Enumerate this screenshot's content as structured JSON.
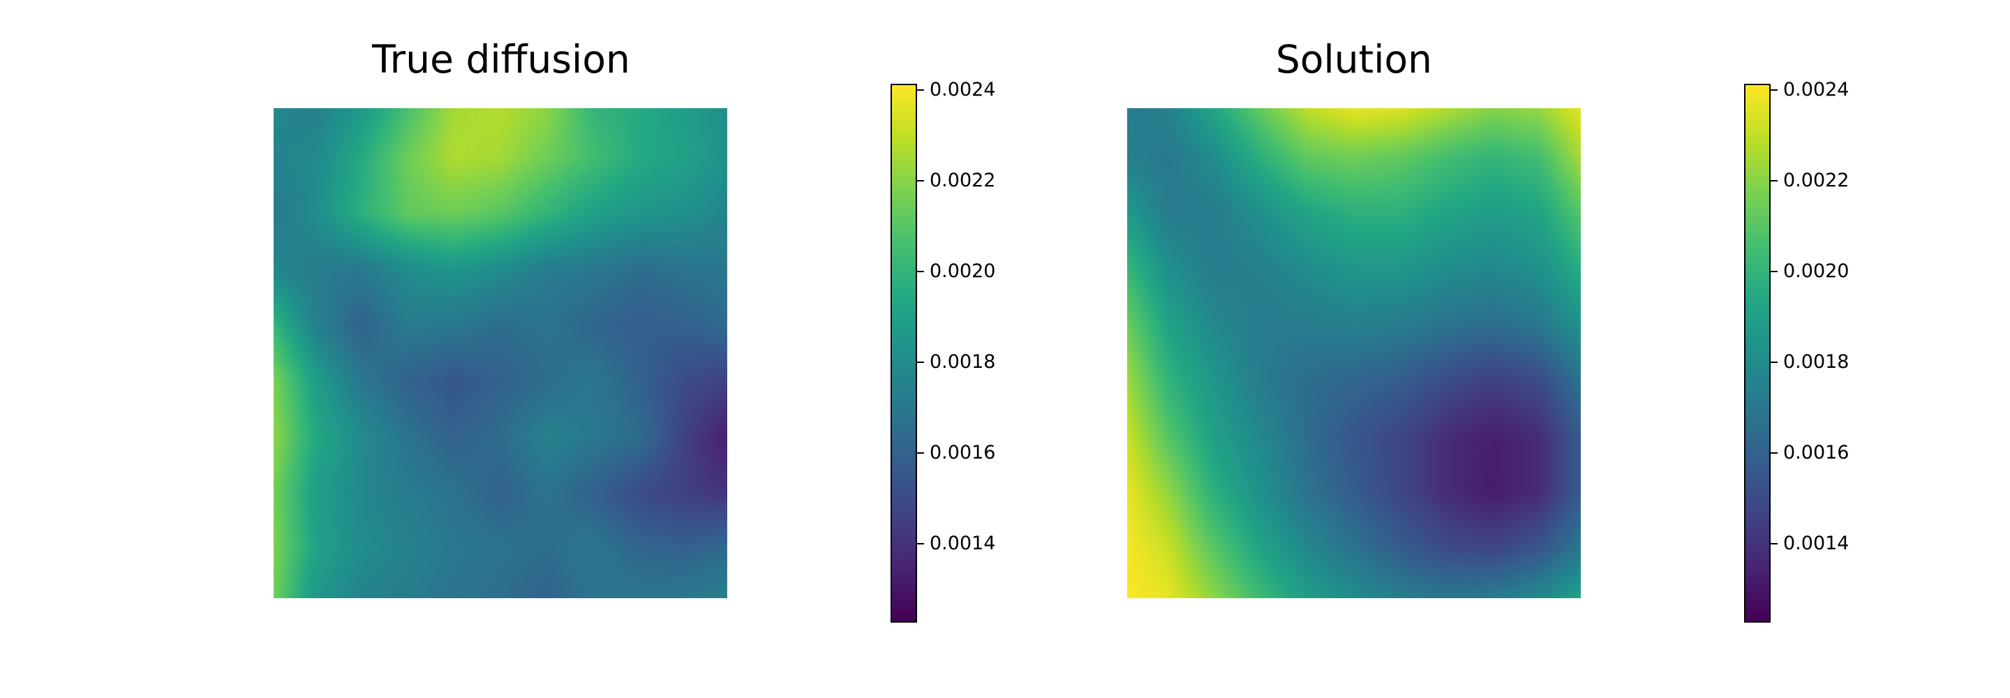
{
  "chart_data": [
    {
      "type": "heatmap",
      "title": "True diffusion",
      "xlabel": "",
      "ylabel": "",
      "grid": false,
      "axes_visible": false,
      "colormap": "viridis",
      "colorbar": {
        "vmin": 0.00123,
        "vmax": 0.00241,
        "ticks": [
          0.0014,
          0.0016,
          0.0018,
          0.002,
          0.0022,
          0.0024
        ],
        "tick_labels": [
          "0.0014",
          "0.0016",
          "0.0018",
          "0.0020",
          "0.0022",
          "0.0024"
        ]
      },
      "z": [
        [
          0.00178,
          0.00174,
          0.00185,
          0.00205,
          0.00225,
          0.00228,
          0.00222,
          0.002,
          0.00195,
          0.00188,
          0.0018
        ],
        [
          0.00175,
          0.00178,
          0.00195,
          0.00215,
          0.00227,
          0.00225,
          0.00215,
          0.00205,
          0.00195,
          0.0019,
          0.00182
        ],
        [
          0.0017,
          0.0018,
          0.00198,
          0.00212,
          0.00215,
          0.0021,
          0.002,
          0.0019,
          0.00185,
          0.00182,
          0.00175
        ],
        [
          0.00178,
          0.00172,
          0.0017,
          0.0018,
          0.00185,
          0.0018,
          0.00172,
          0.0017,
          0.00165,
          0.00168,
          0.0017
        ],
        [
          0.00205,
          0.00175,
          0.0016,
          0.00172,
          0.0017,
          0.00165,
          0.00168,
          0.00162,
          0.00158,
          0.0016,
          0.00165
        ],
        [
          0.00222,
          0.0019,
          0.0017,
          0.0016,
          0.00155,
          0.0016,
          0.00165,
          0.0017,
          0.0016,
          0.0015,
          0.00145
        ],
        [
          0.00225,
          0.00195,
          0.0018,
          0.00168,
          0.0016,
          0.00165,
          0.00175,
          0.0017,
          0.00165,
          0.00145,
          0.00132
        ],
        [
          0.0022,
          0.0019,
          0.00178,
          0.00172,
          0.00168,
          0.0016,
          0.00168,
          0.0016,
          0.0015,
          0.00145,
          0.0014
        ],
        [
          0.00222,
          0.00192,
          0.0018,
          0.00175,
          0.0017,
          0.00168,
          0.00165,
          0.0017,
          0.00162,
          0.0016,
          0.00165
        ],
        [
          0.0022,
          0.00185,
          0.00175,
          0.00172,
          0.00168,
          0.00165,
          0.0016,
          0.00168,
          0.0017,
          0.00172,
          0.00175
        ]
      ]
    },
    {
      "type": "heatmap",
      "title": "Solution",
      "xlabel": "",
      "ylabel": "",
      "grid": false,
      "axes_visible": false,
      "colormap": "viridis",
      "colorbar": {
        "vmin": 0.00123,
        "vmax": 0.00241,
        "ticks": [
          0.0014,
          0.0016,
          0.0018,
          0.002,
          0.0022,
          0.0024
        ],
        "tick_labels": [
          "0.0014",
          "0.0016",
          "0.0018",
          "0.0020",
          "0.0022",
          "0.0024"
        ]
      },
      "z": [
        [
          0.0017,
          0.00175,
          0.00195,
          0.00215,
          0.00232,
          0.0024,
          0.00238,
          0.0023,
          0.00222,
          0.00225,
          0.0024
        ],
        [
          0.00175,
          0.0017,
          0.0018,
          0.00198,
          0.00212,
          0.00215,
          0.00212,
          0.00205,
          0.002,
          0.00205,
          0.00228
        ],
        [
          0.0019,
          0.00172,
          0.00172,
          0.00182,
          0.00192,
          0.00198,
          0.00198,
          0.00192,
          0.00188,
          0.00192,
          0.00212
        ],
        [
          0.00205,
          0.00182,
          0.00172,
          0.00174,
          0.0018,
          0.00185,
          0.00185,
          0.0018,
          0.00178,
          0.00182,
          0.00198
        ],
        [
          0.00218,
          0.00192,
          0.00178,
          0.00172,
          0.00172,
          0.00174,
          0.00172,
          0.00168,
          0.00165,
          0.0017,
          0.00185
        ],
        [
          0.00228,
          0.002,
          0.00185,
          0.00172,
          0.00165,
          0.00162,
          0.00158,
          0.0015,
          0.00145,
          0.0015,
          0.0017
        ],
        [
          0.00235,
          0.0021,
          0.0019,
          0.00178,
          0.00165,
          0.00155,
          0.00148,
          0.00138,
          0.00133,
          0.00138,
          0.0016
        ],
        [
          0.0024,
          0.00222,
          0.00198,
          0.00182,
          0.00168,
          0.00158,
          0.00148,
          0.00138,
          0.00132,
          0.00138,
          0.0016
        ],
        [
          0.00241,
          0.00232,
          0.0021,
          0.00192,
          0.00178,
          0.00168,
          0.00158,
          0.0015,
          0.00148,
          0.00155,
          0.00172
        ],
        [
          0.00241,
          0.00238,
          0.00222,
          0.00205,
          0.0019,
          0.00182,
          0.00175,
          0.00172,
          0.00175,
          0.00182,
          0.00195
        ]
      ]
    }
  ]
}
